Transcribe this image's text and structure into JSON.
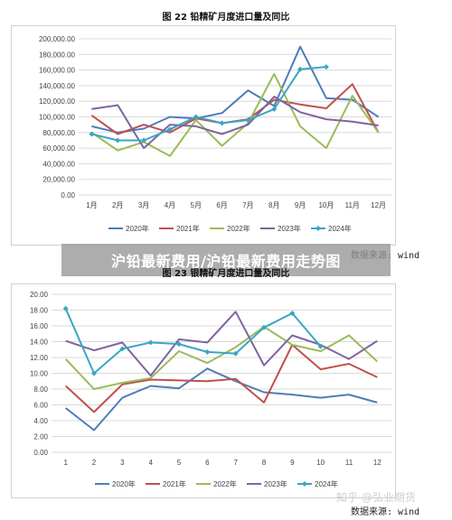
{
  "banner": {
    "text": "沪铅最新费用/沪铅最新费用走势图"
  },
  "watermark": {
    "text": "知乎 @弘业期货"
  },
  "chart_data": [
    {
      "type": "line",
      "title": "图 22 铅精矿月度进口量及同比",
      "source": "数据来源: wind",
      "categories": [
        "1月",
        "2月",
        "3月",
        "4月",
        "5月",
        "6月",
        "7月",
        "8月",
        "9月",
        "10月",
        "11月",
        "12月"
      ],
      "ylim": [
        0,
        200000
      ],
      "yticks": [
        "0.00",
        "20,000.00",
        "40,000.00",
        "60,000.00",
        "80,000.00",
        "100,000.00",
        "120,000.00",
        "140,000.00",
        "160,000.00",
        "180,000.00",
        "200,000.00"
      ],
      "grid": true,
      "legend": "bottom",
      "series": [
        {
          "name": "2020年",
          "color": "#4e7db8",
          "marker": false,
          "values": [
            88000,
            80000,
            85000,
            100000,
            98000,
            105000,
            134000,
            114000,
            190000,
            124000,
            122000,
            100000
          ]
        },
        {
          "name": "2021年",
          "color": "#c0504d",
          "marker": false,
          "values": [
            102000,
            78000,
            90000,
            80000,
            98000,
            92000,
            97000,
            122000,
            116000,
            111000,
            142000,
            80000
          ]
        },
        {
          "name": "2022年",
          "color": "#9bbb59",
          "marker": false,
          "values": [
            80000,
            57000,
            68000,
            50000,
            96000,
            63000,
            92000,
            155000,
            88000,
            60000,
            127000,
            80000
          ]
        },
        {
          "name": "2023年",
          "color": "#7f63a0",
          "marker": false,
          "values": [
            110000,
            115000,
            60000,
            90000,
            88000,
            78000,
            90000,
            126000,
            106000,
            97000,
            94000,
            89000
          ]
        },
        {
          "name": "2024年",
          "color": "#3aa5c6",
          "marker": true,
          "values": [
            78000,
            70000,
            70000,
            84000,
            100000,
            92000,
            96000,
            110000,
            161000,
            164000,
            null,
            null
          ]
        }
      ]
    },
    {
      "type": "line",
      "title": "图 23 银精矿月度进口量及同比",
      "source": "数据来源: wind",
      "categories": [
        "1",
        "2",
        "3",
        "4",
        "5",
        "6",
        "7",
        "8",
        "9",
        "10",
        "11",
        "12"
      ],
      "ylim": [
        0,
        20
      ],
      "yticks": [
        "0.00",
        "2.00",
        "4.00",
        "6.00",
        "8.00",
        "10.00",
        "12.00",
        "14.00",
        "16.00",
        "18.00",
        "20.00"
      ],
      "grid": true,
      "legend": "bottom",
      "series": [
        {
          "name": "2020年",
          "color": "#4e7db8",
          "marker": false,
          "values": [
            5.6,
            2.8,
            6.9,
            8.4,
            8.1,
            10.6,
            9.0,
            7.6,
            7.3,
            6.9,
            7.3,
            6.3
          ]
        },
        {
          "name": "2021年",
          "color": "#c0504d",
          "marker": false,
          "values": [
            8.4,
            5.1,
            8.6,
            9.2,
            9.1,
            9.0,
            9.3,
            6.3,
            13.6,
            10.5,
            11.2,
            9.5
          ]
        },
        {
          "name": "2022年",
          "color": "#9bbb59",
          "marker": false,
          "values": [
            11.8,
            8.0,
            8.8,
            9.4,
            12.8,
            11.3,
            13.3,
            15.9,
            13.6,
            12.8,
            14.8,
            11.5
          ]
        },
        {
          "name": "2023年",
          "color": "#7f63a0",
          "marker": false,
          "values": [
            14.1,
            12.9,
            13.9,
            9.7,
            14.3,
            13.9,
            17.8,
            11.0,
            14.8,
            13.6,
            11.8,
            14.1
          ]
        },
        {
          "name": "2024年",
          "color": "#3aa5c6",
          "marker": true,
          "values": [
            18.2,
            10.0,
            13.1,
            13.9,
            13.7,
            12.7,
            12.5,
            15.8,
            17.6,
            13.4,
            null,
            null
          ]
        }
      ]
    }
  ]
}
